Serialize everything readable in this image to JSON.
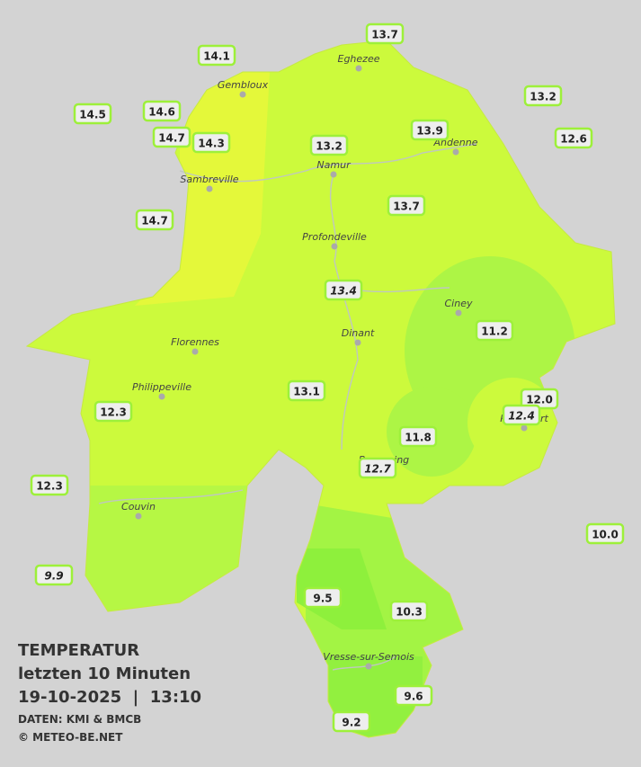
{
  "title": {
    "line1": "TEMPERATUR",
    "line2": "letzten 10 Minuten",
    "line3": "19-10-2025  |  13:10",
    "source": "DATEN: KMI & BMCB",
    "copyright": "© METEO-BE.NET"
  },
  "cities": [
    "Eghezee",
    "Gembloux",
    "Andenne",
    "Namur",
    "Sambreville",
    "Profondeville",
    "Ciney",
    "Dinant",
    "Florennes",
    "Philippeville",
    "Rochefort",
    "Beauraing",
    "Couvin",
    "Vresse-sur-Semois"
  ],
  "stations": [
    "13.7",
    "14.1",
    "14.5",
    "14.6",
    "14.7",
    "14.3",
    "13.2",
    "13.9",
    "13.2",
    "12.6",
    "14.7",
    "13.7",
    "13.4",
    "11.2",
    "13.1",
    "12.0",
    "12.4",
    "12.3",
    "11.8",
    "12.7",
    "12.3",
    "10.0",
    "9.9",
    "9.5",
    "10.3",
    "9.6",
    "9.2"
  ]
}
